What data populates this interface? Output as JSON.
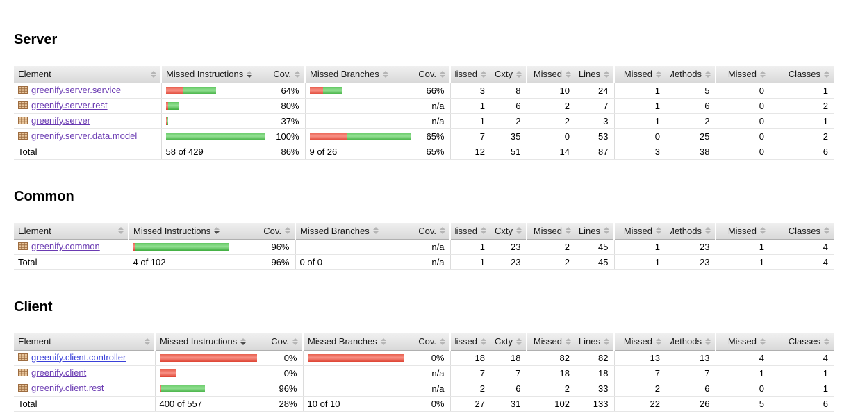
{
  "columns": [
    {
      "label": "Element",
      "sort": "inactive"
    },
    {
      "label": "Missed Instructions",
      "sort": "desc"
    },
    {
      "label": "Cov.",
      "sort": "inactive"
    },
    {
      "label": "Missed Branches",
      "sort": "inactive"
    },
    {
      "label": "Cov.",
      "sort": "inactive"
    },
    {
      "label": "Missed",
      "sort": "inactive"
    },
    {
      "label": "Cxty",
      "sort": "inactive"
    },
    {
      "label": "Missed",
      "sort": "inactive"
    },
    {
      "label": "Lines",
      "sort": "inactive"
    },
    {
      "label": "Missed",
      "sort": "inactive"
    },
    {
      "label": "Methods",
      "sort": "inactive"
    },
    {
      "label": "Missed",
      "sort": "inactive"
    },
    {
      "label": "Classes",
      "sort": "inactive"
    }
  ],
  "colors": {
    "covered_bar_green": "#4fbe4f",
    "missed_bar_red": "#ea5343",
    "visited_link_purple": "#6a3ab2",
    "unvisited_link_blue": "#3a41d9",
    "header_bg_gray": "#e2e2e2"
  },
  "sections": [
    {
      "title": "Server",
      "rows": [
        {
          "element": "greenify.server.service",
          "link_class": "visited",
          "mi_bar": {
            "red": 25,
            "green": 47
          },
          "mi_cov": "64%",
          "mb_bar": {
            "red": 19,
            "green": 28
          },
          "mb_cov": "66%",
          "missed_cxty": "3",
          "cxty": "8",
          "missed_lines": "10",
          "lines": "24",
          "missed_methods": "1",
          "methods": "5",
          "missed_classes": "0",
          "classes": "1"
        },
        {
          "element": "greenify.server.rest",
          "link_class": "visited",
          "mi_bar": {
            "red": 3,
            "green": 15
          },
          "mi_cov": "80%",
          "mb_bar": {
            "red": 0,
            "green": 0
          },
          "mb_cov": "n/a",
          "missed_cxty": "1",
          "cxty": "6",
          "missed_lines": "2",
          "lines": "7",
          "missed_methods": "1",
          "methods": "6",
          "missed_classes": "0",
          "classes": "2"
        },
        {
          "element": "greenify.server",
          "link_class": "visited",
          "mi_bar": {
            "red": 2,
            "green": 1
          },
          "mi_cov": "37%",
          "mb_bar": {
            "red": 0,
            "green": 0
          },
          "mb_cov": "n/a",
          "missed_cxty": "1",
          "cxty": "2",
          "missed_lines": "2",
          "lines": "3",
          "missed_methods": "1",
          "methods": "2",
          "missed_classes": "0",
          "classes": "1"
        },
        {
          "element": "greenify.server.data.model",
          "link_class": "visited",
          "mi_bar": {
            "red": 0,
            "green": 143
          },
          "mi_cov": "100%",
          "mb_bar": {
            "red": 53,
            "green": 92
          },
          "mb_cov": "65%",
          "missed_cxty": "7",
          "cxty": "35",
          "missed_lines": "0",
          "lines": "53",
          "missed_methods": "0",
          "methods": "25",
          "missed_classes": "0",
          "classes": "2"
        }
      ],
      "total": {
        "label": "Total",
        "mi_text": "58 of 429",
        "mi_cov": "86%",
        "mb_text": "9 of 26",
        "mb_cov": "65%",
        "missed_cxty": "12",
        "cxty": "51",
        "missed_lines": "14",
        "lines": "87",
        "missed_methods": "3",
        "methods": "38",
        "missed_classes": "0",
        "classes": "6"
      }
    },
    {
      "title": "Common",
      "rows": [
        {
          "element": "greenify.common",
          "link_class": "visited",
          "mi_bar": {
            "red": 3,
            "green": 135
          },
          "mi_cov": "96%",
          "mb_bar": {
            "red": 0,
            "green": 0
          },
          "mb_cov": "n/a",
          "missed_cxty": "1",
          "cxty": "23",
          "missed_lines": "2",
          "lines": "45",
          "missed_methods": "1",
          "methods": "23",
          "missed_classes": "1",
          "classes": "4"
        }
      ],
      "total": {
        "label": "Total",
        "mi_text": "4 of 102",
        "mi_cov": "96%",
        "mb_text": "0 of 0",
        "mb_cov": "n/a",
        "missed_cxty": "1",
        "cxty": "23",
        "missed_lines": "2",
        "lines": "45",
        "missed_methods": "1",
        "methods": "23",
        "missed_classes": "1",
        "classes": "4"
      }
    },
    {
      "title": "Client",
      "rows": [
        {
          "element": "greenify.client.controller",
          "link_class": "fresh",
          "mi_bar": {
            "red": 140,
            "green": 0
          },
          "mi_cov": "0%",
          "mb_bar": {
            "red": 138,
            "green": 0
          },
          "mb_cov": "0%",
          "missed_cxty": "18",
          "cxty": "18",
          "missed_lines": "82",
          "lines": "82",
          "missed_methods": "13",
          "methods": "13",
          "missed_classes": "4",
          "classes": "4"
        },
        {
          "element": "greenify.client",
          "link_class": "visited",
          "mi_bar": {
            "red": 23,
            "green": 0
          },
          "mi_cov": "0%",
          "mb_bar": {
            "red": 0,
            "green": 0
          },
          "mb_cov": "n/a",
          "missed_cxty": "7",
          "cxty": "7",
          "missed_lines": "18",
          "lines": "18",
          "missed_methods": "7",
          "methods": "7",
          "missed_classes": "1",
          "classes": "1"
        },
        {
          "element": "greenify.client.rest",
          "link_class": "visited",
          "mi_bar": {
            "red": 2,
            "green": 63
          },
          "mi_cov": "96%",
          "mb_bar": {
            "red": 0,
            "green": 0
          },
          "mb_cov": "n/a",
          "missed_cxty": "2",
          "cxty": "6",
          "missed_lines": "2",
          "lines": "33",
          "missed_methods": "2",
          "methods": "6",
          "missed_classes": "0",
          "classes": "1"
        }
      ],
      "total": {
        "label": "Total",
        "mi_text": "400 of 557",
        "mi_cov": "28%",
        "mb_text": "10 of 10",
        "mb_cov": "0%",
        "missed_cxty": "27",
        "cxty": "31",
        "missed_lines": "102",
        "lines": "133",
        "missed_methods": "22",
        "methods": "26",
        "missed_classes": "5",
        "classes": "6"
      }
    }
  ]
}
